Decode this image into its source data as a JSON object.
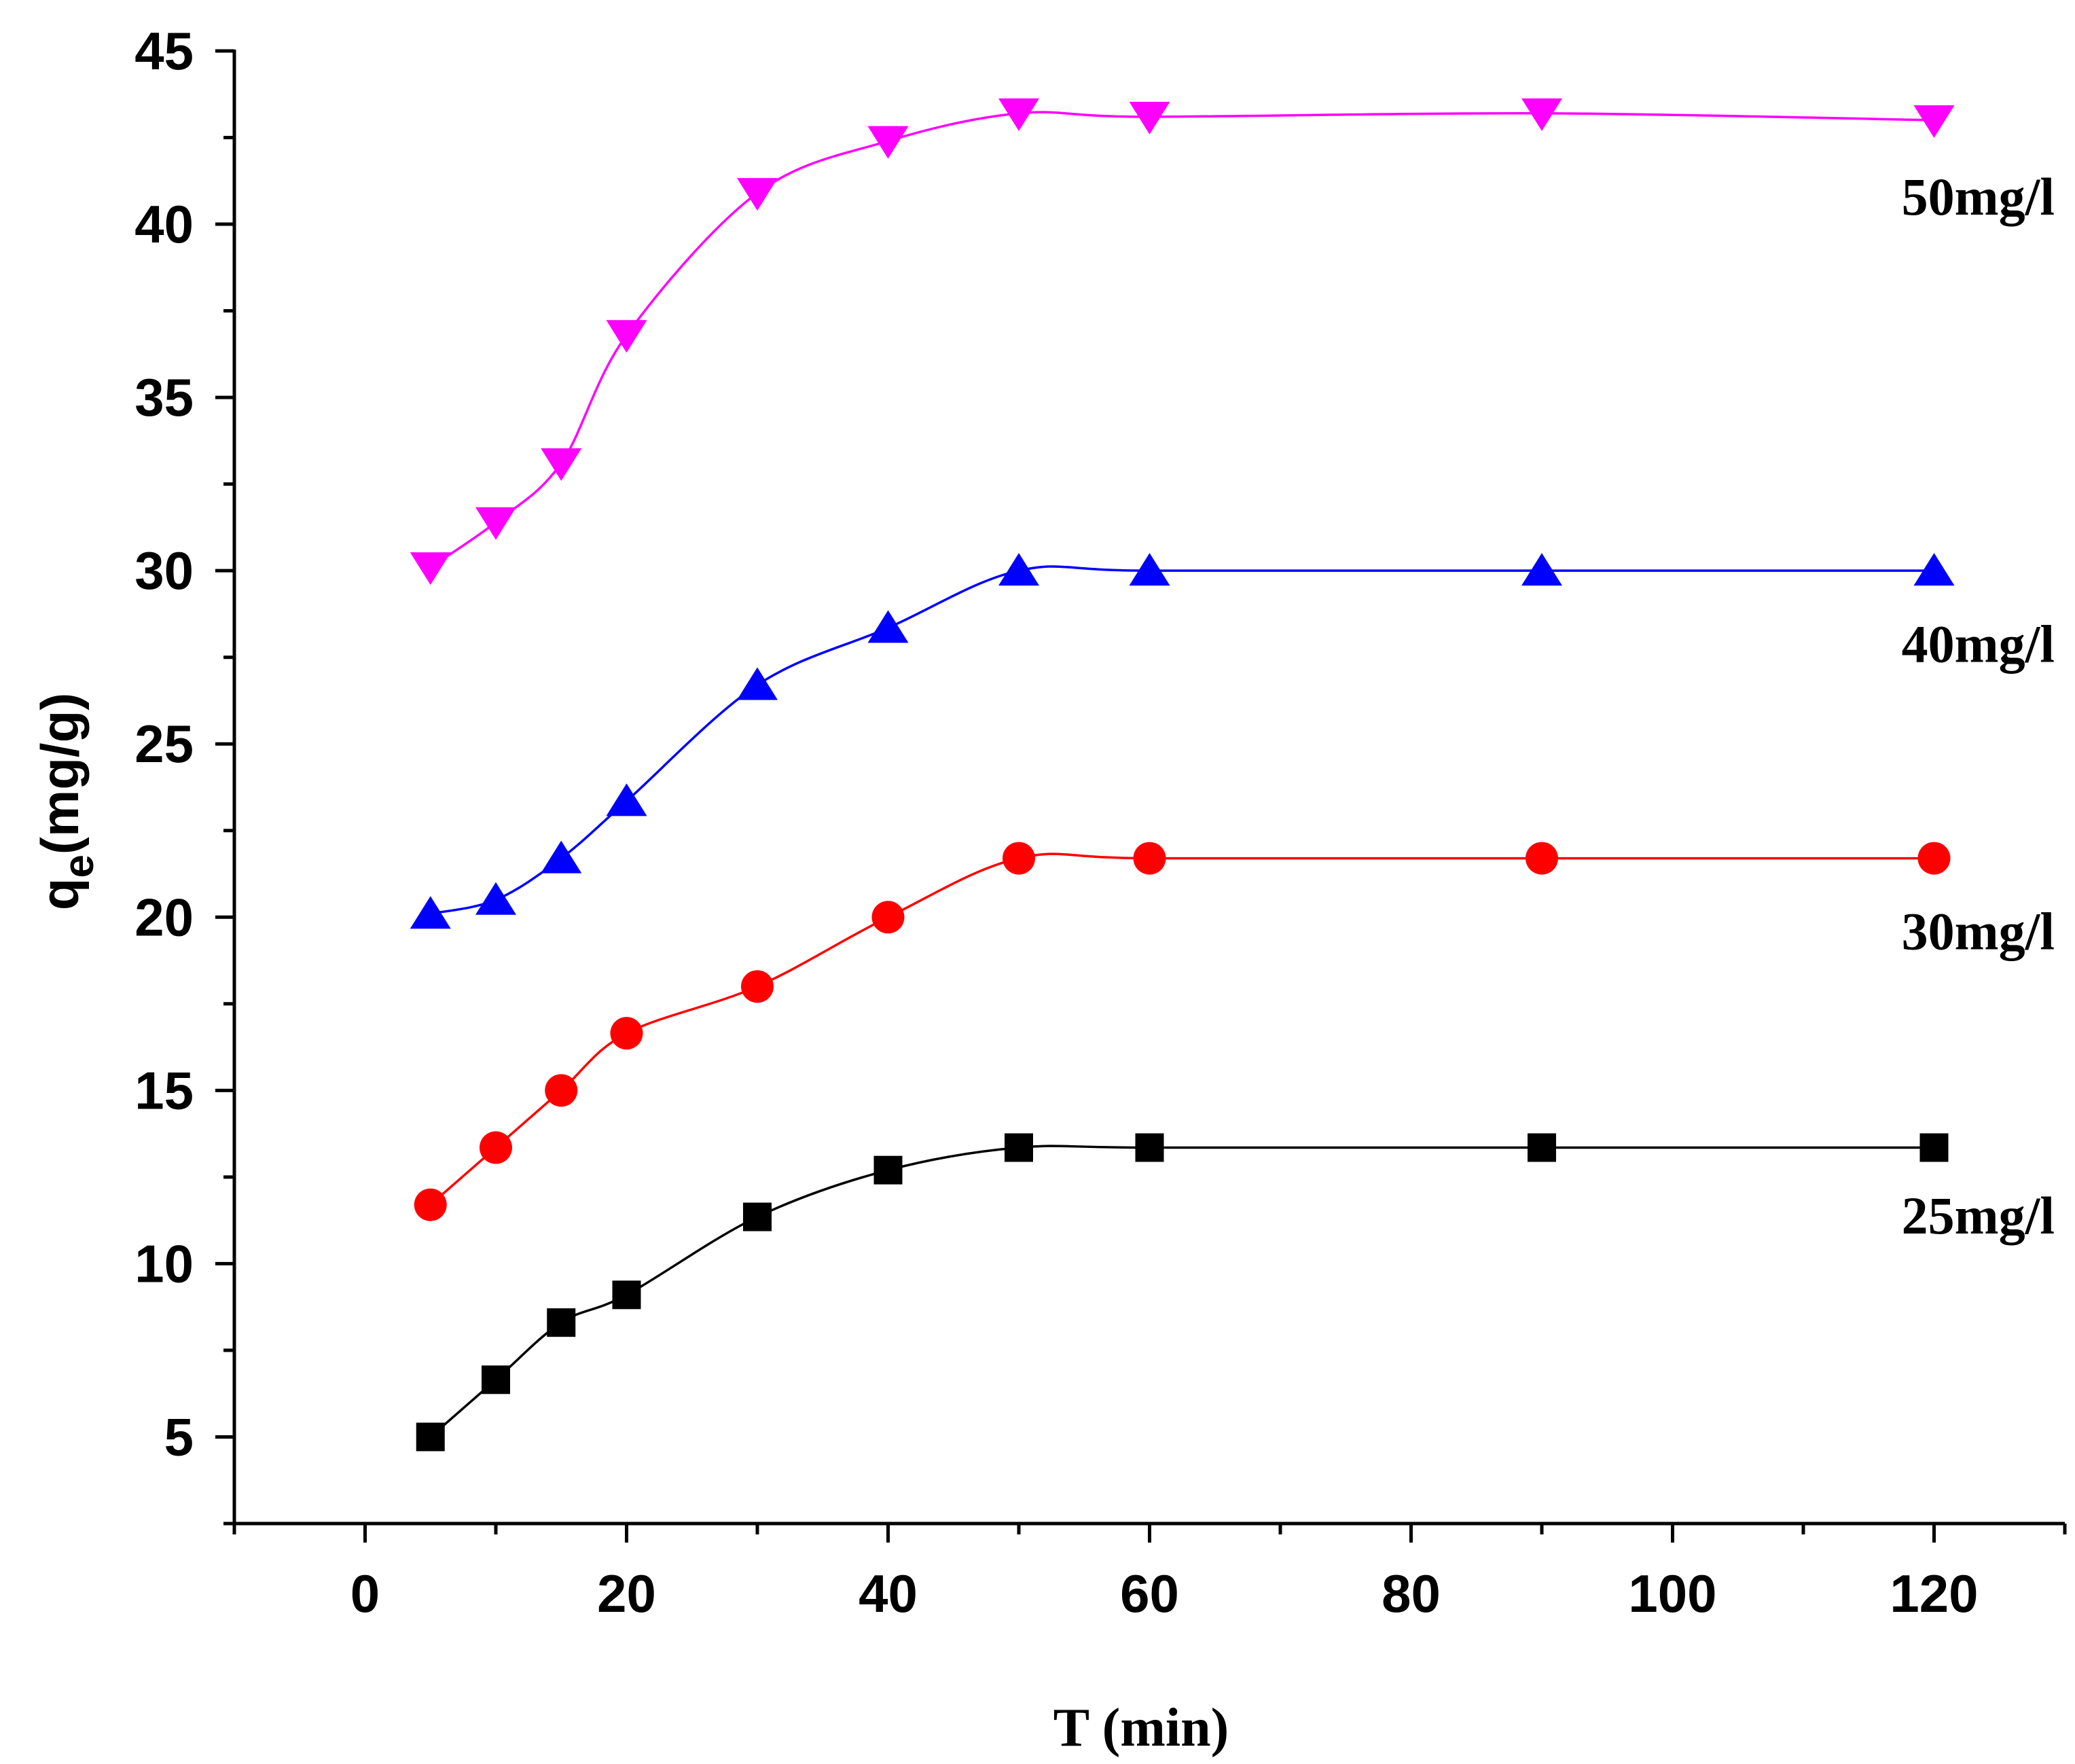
{
  "chart_data": {
    "type": "line",
    "title": "",
    "xlabel": "T (min)",
    "ylabel": "qe(mg/g)",
    "ylabel_base": "q",
    "ylabel_sub": "e",
    "ylabel_rest": "(mg/g)",
    "xlim": [
      -10,
      130
    ],
    "ylim": [
      2.5,
      45
    ],
    "xticks": [
      0,
      20,
      40,
      60,
      80,
      100,
      120
    ],
    "yticks": [
      5,
      10,
      15,
      20,
      25,
      30,
      35,
      40,
      45
    ],
    "grid": false,
    "x": [
      5,
      10,
      15,
      20,
      30,
      40,
      50,
      60,
      90,
      120
    ],
    "series": [
      {
        "name": "25mg/l",
        "label": "25mg/l",
        "color": "#000000",
        "marker": "square",
        "values": [
          5.0,
          6.65,
          8.3,
          9.1,
          11.35,
          12.7,
          13.35,
          13.35,
          13.35,
          13.35
        ],
        "label_y": 11.4
      },
      {
        "name": "30mg/l",
        "label": "30mg/l",
        "color": "#ff0000",
        "marker": "circle",
        "values": [
          11.7,
          13.35,
          15.0,
          16.65,
          18.0,
          20.0,
          21.7,
          21.7,
          21.7,
          21.7
        ],
        "label_y": 19.6
      },
      {
        "name": "40mg/l",
        "label": "40mg/l",
        "color": "#0000ff",
        "marker": "triangle-up",
        "values": [
          20.1,
          20.5,
          21.7,
          23.35,
          26.7,
          28.35,
          30.0,
          30.0,
          30.0,
          30.0
        ],
        "label_y": 27.9
      },
      {
        "name": "50mg/l",
        "label": "50mg/l",
        "color": "#ff00ff",
        "marker": "triangle-down",
        "values": [
          30.1,
          31.4,
          33.1,
          36.8,
          40.9,
          42.4,
          43.2,
          43.1,
          43.2,
          43.0
        ],
        "label_y": 40.8
      }
    ]
  }
}
